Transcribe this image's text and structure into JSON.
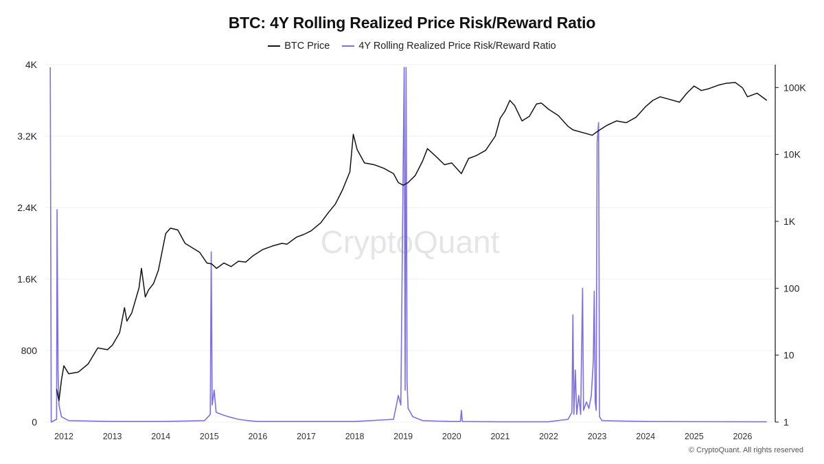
{
  "chart_data": {
    "type": "line",
    "title": "BTC: 4Y Rolling Realized Price Risk/Reward Ratio",
    "x_ticks": [
      "2012",
      "2013",
      "2014",
      "2015",
      "2016",
      "2017",
      "2018",
      "2019",
      "2020",
      "2021",
      "2022",
      "2023",
      "2024",
      "2025",
      "2026"
    ],
    "y_left": {
      "ticks": [
        0,
        800,
        1600,
        2400,
        3200,
        4000
      ],
      "tick_labels": [
        "0",
        "800",
        "1.6K",
        "2.4K",
        "3.2K",
        "4K"
      ],
      "range": [
        0,
        4000
      ]
    },
    "y_right": {
      "scale": "log",
      "ticks": [
        1,
        10,
        100,
        1000,
        10000,
        100000
      ],
      "tick_labels": [
        "1",
        "10",
        "100",
        "1K",
        "10K",
        "100K"
      ],
      "range": [
        1,
        220000
      ]
    },
    "grid": "horizontal",
    "legend_position": "top-center",
    "series": [
      {
        "name": "BTC Price",
        "color": "#111111",
        "axis": "left",
        "points": [
          [
            2011.85,
            370
          ],
          [
            2011.9,
            240
          ],
          [
            2011.95,
            470
          ],
          [
            2012.0,
            630
          ],
          [
            2012.1,
            540
          ],
          [
            2012.3,
            560
          ],
          [
            2012.5,
            650
          ],
          [
            2012.7,
            830
          ],
          [
            2012.9,
            810
          ],
          [
            2013.0,
            860
          ],
          [
            2013.15,
            1000
          ],
          [
            2013.25,
            1280
          ],
          [
            2013.3,
            1130
          ],
          [
            2013.4,
            1220
          ],
          [
            2013.55,
            1500
          ],
          [
            2013.6,
            1720
          ],
          [
            2013.68,
            1400
          ],
          [
            2013.75,
            1480
          ],
          [
            2013.85,
            1550
          ],
          [
            2013.95,
            1700
          ],
          [
            2014.1,
            2110
          ],
          [
            2014.2,
            2170
          ],
          [
            2014.35,
            2150
          ],
          [
            2014.5,
            2000
          ],
          [
            2014.65,
            1950
          ],
          [
            2014.8,
            1900
          ],
          [
            2014.95,
            1780
          ],
          [
            2015.05,
            1770
          ],
          [
            2015.15,
            1720
          ],
          [
            2015.3,
            1780
          ],
          [
            2015.45,
            1740
          ],
          [
            2015.6,
            1800
          ],
          [
            2015.75,
            1790
          ],
          [
            2015.9,
            1860
          ],
          [
            2016.1,
            1930
          ],
          [
            2016.3,
            1970
          ],
          [
            2016.5,
            2000
          ],
          [
            2016.6,
            1990
          ],
          [
            2016.8,
            2070
          ],
          [
            2016.95,
            2100
          ],
          [
            2017.1,
            2140
          ],
          [
            2017.3,
            2230
          ],
          [
            2017.45,
            2340
          ],
          [
            2017.6,
            2440
          ],
          [
            2017.75,
            2600
          ],
          [
            2017.9,
            2800
          ],
          [
            2017.97,
            3220
          ],
          [
            2018.05,
            3050
          ],
          [
            2018.2,
            2900
          ],
          [
            2018.4,
            2880
          ],
          [
            2018.6,
            2840
          ],
          [
            2018.8,
            2780
          ],
          [
            2018.9,
            2680
          ],
          [
            2019.0,
            2650
          ],
          [
            2019.1,
            2680
          ],
          [
            2019.25,
            2760
          ],
          [
            2019.4,
            2920
          ],
          [
            2019.5,
            3060
          ],
          [
            2019.7,
            2960
          ],
          [
            2019.85,
            2880
          ],
          [
            2020.0,
            2900
          ],
          [
            2020.2,
            2780
          ],
          [
            2020.35,
            2950
          ],
          [
            2020.5,
            2980
          ],
          [
            2020.7,
            3040
          ],
          [
            2020.9,
            3200
          ],
          [
            2021.0,
            3400
          ],
          [
            2021.1,
            3480
          ],
          [
            2021.2,
            3600
          ],
          [
            2021.3,
            3540
          ],
          [
            2021.45,
            3370
          ],
          [
            2021.6,
            3420
          ],
          [
            2021.75,
            3560
          ],
          [
            2021.85,
            3570
          ],
          [
            2022.0,
            3500
          ],
          [
            2022.2,
            3430
          ],
          [
            2022.4,
            3310
          ],
          [
            2022.5,
            3270
          ],
          [
            2022.7,
            3240
          ],
          [
            2022.9,
            3210
          ],
          [
            2023.0,
            3250
          ],
          [
            2023.2,
            3320
          ],
          [
            2023.4,
            3370
          ],
          [
            2023.6,
            3350
          ],
          [
            2023.8,
            3410
          ],
          [
            2024.0,
            3530
          ],
          [
            2024.15,
            3600
          ],
          [
            2024.3,
            3640
          ],
          [
            2024.5,
            3610
          ],
          [
            2024.7,
            3580
          ],
          [
            2024.85,
            3680
          ],
          [
            2025.0,
            3760
          ],
          [
            2025.15,
            3710
          ],
          [
            2025.3,
            3730
          ],
          [
            2025.5,
            3770
          ],
          [
            2025.65,
            3790
          ],
          [
            2025.85,
            3800
          ],
          [
            2026.0,
            3740
          ],
          [
            2026.1,
            3640
          ],
          [
            2026.3,
            3680
          ],
          [
            2026.45,
            3620
          ],
          [
            2026.5,
            3600
          ]
        ]
      },
      {
        "name": "4Y Rolling Realized Price Risk/Reward Ratio",
        "color": "#7c6fe0",
        "axis": "right",
        "points": [
          [
            2011.72,
            200000
          ],
          [
            2011.74,
            1.0
          ],
          [
            2011.85,
            1.1
          ],
          [
            2011.86,
            1500
          ],
          [
            2011.88,
            6
          ],
          [
            2011.9,
            1.8
          ],
          [
            2011.95,
            1.2
          ],
          [
            2012.1,
            1.05
          ],
          [
            2013.0,
            1.02
          ],
          [
            2014.0,
            1.02
          ],
          [
            2014.9,
            1.05
          ],
          [
            2015.02,
            1.3
          ],
          [
            2015.04,
            350
          ],
          [
            2015.06,
            1.8
          ],
          [
            2015.1,
            3
          ],
          [
            2015.14,
            1.4
          ],
          [
            2015.25,
            1.3
          ],
          [
            2015.4,
            1.2
          ],
          [
            2015.6,
            1.1
          ],
          [
            2015.8,
            1.05
          ],
          [
            2016.0,
            1.02
          ],
          [
            2017.0,
            1.02
          ],
          [
            2018.0,
            1.02
          ],
          [
            2018.8,
            1.1
          ],
          [
            2018.9,
            2.5
          ],
          [
            2018.95,
            1.8
          ],
          [
            2019.02,
            200000
          ],
          [
            2019.04,
            3
          ],
          [
            2019.06,
            200000
          ],
          [
            2019.08,
            4
          ],
          [
            2019.1,
            1.6
          ],
          [
            2019.2,
            1.2
          ],
          [
            2019.4,
            1.05
          ],
          [
            2020.0,
            1.02
          ],
          [
            2020.18,
            1.02
          ],
          [
            2020.2,
            1.5
          ],
          [
            2020.22,
            1.02
          ],
          [
            2021.0,
            1.01
          ],
          [
            2022.0,
            1.01
          ],
          [
            2022.4,
            1.1
          ],
          [
            2022.48,
            1.4
          ],
          [
            2022.5,
            40
          ],
          [
            2022.52,
            1.3
          ],
          [
            2022.55,
            6
          ],
          [
            2022.58,
            1.3
          ],
          [
            2022.62,
            2.5
          ],
          [
            2022.66,
            1.3
          ],
          [
            2022.7,
            100
          ],
          [
            2022.72,
            1.5
          ],
          [
            2022.78,
            2
          ],
          [
            2022.83,
            1.6
          ],
          [
            2022.88,
            2.5
          ],
          [
            2022.92,
            8
          ],
          [
            2022.94,
            90
          ],
          [
            2022.96,
            2
          ],
          [
            2022.98,
            1.5
          ],
          [
            2023.0,
            15000
          ],
          [
            2023.03,
            30000
          ],
          [
            2023.05,
            1.2
          ],
          [
            2023.1,
            1.05
          ],
          [
            2024.0,
            1.02
          ],
          [
            2026.5,
            1.01
          ]
        ]
      }
    ]
  },
  "watermark": "CryptoQuant",
  "footer": "© CryptoQuant. All rights reserved"
}
